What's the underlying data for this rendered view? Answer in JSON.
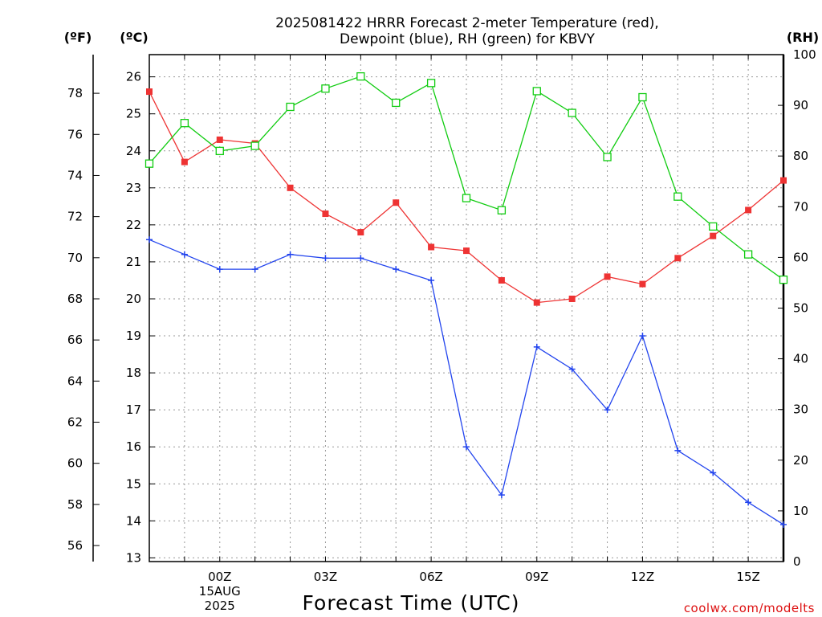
{
  "chart_data": {
    "type": "line",
    "title": [
      "2025081422 HRRR Forecast 2-meter Temperature (red),",
      "Dewpoint (blue), RH (green) for KBVY"
    ],
    "xlabel": "Forecast Time (UTC)",
    "credit": "coolwx.com/modelts",
    "units": {
      "fahrenheit": "(ºF)",
      "celsius": "(ºC)",
      "rh": "(RH)"
    },
    "x": [
      "22Z",
      "23Z",
      "00Z",
      "01Z",
      "02Z",
      "03Z",
      "04Z",
      "05Z",
      "06Z",
      "07Z",
      "08Z",
      "09Z",
      "10Z",
      "11Z",
      "12Z",
      "13Z",
      "14Z",
      "15Z",
      "16Z"
    ],
    "x_tick_labels": [
      {
        "x": "00Z",
        "lines": [
          "00Z",
          "15AUG",
          "2025"
        ]
      },
      {
        "x": "03Z",
        "lines": [
          "03Z"
        ]
      },
      {
        "x": "06Z",
        "lines": [
          "06Z"
        ]
      },
      {
        "x": "09Z",
        "lines": [
          "09Z"
        ]
      },
      {
        "x": "12Z",
        "lines": [
          "12Z"
        ]
      },
      {
        "x": "15Z",
        "lines": [
          "15Z"
        ]
      }
    ],
    "axes": {
      "celsius": {
        "range": [
          12.9,
          26.6
        ],
        "ticks": [
          13,
          14,
          15,
          16,
          17,
          18,
          19,
          20,
          21,
          22,
          23,
          24,
          25,
          26
        ]
      },
      "fahrenheit": {
        "ticks": [
          56,
          58,
          60,
          62,
          64,
          66,
          68,
          70,
          72,
          74,
          76,
          78
        ]
      },
      "rh": {
        "range": [
          0,
          100
        ],
        "ticks": [
          0,
          10,
          20,
          30,
          40,
          50,
          60,
          70,
          80,
          90,
          100
        ]
      }
    },
    "grid": true,
    "series": [
      {
        "name": "Temperature",
        "axis": "celsius",
        "color": "#ee3333",
        "marker": "filled-square",
        "values": [
          25.6,
          23.7,
          24.3,
          24.2,
          23.0,
          22.3,
          21.8,
          22.6,
          21.4,
          21.3,
          20.5,
          19.9,
          20.0,
          20.6,
          20.4,
          21.1,
          21.7,
          22.4,
          23.2
        ]
      },
      {
        "name": "Dewpoint",
        "axis": "celsius",
        "color": "#2244ee",
        "marker": "plus",
        "values": [
          21.6,
          21.2,
          20.8,
          20.8,
          21.2,
          21.1,
          21.1,
          20.8,
          20.5,
          16.0,
          14.7,
          18.7,
          18.1,
          17.0,
          19.0,
          15.9,
          15.3,
          14.5,
          13.9
        ]
      },
      {
        "name": "RH",
        "axis": "rh",
        "color": "#11cc11",
        "marker": "open-square",
        "values": [
          78.5,
          86.5,
          81.0,
          82.0,
          89.7,
          93.3,
          95.7,
          90.5,
          94.4,
          71.7,
          69.3,
          92.8,
          88.5,
          79.8,
          91.6,
          72.0,
          66.1,
          60.6,
          55.6
        ]
      }
    ]
  }
}
